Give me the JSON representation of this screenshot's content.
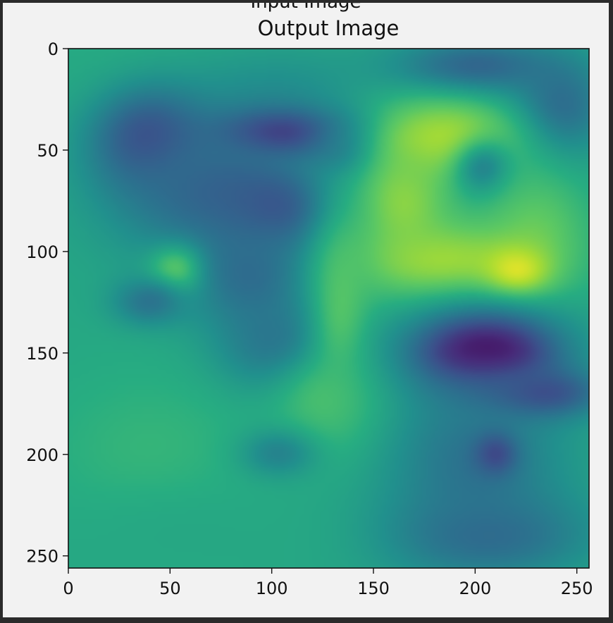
{
  "window": {
    "partial_top_text": "Input Image"
  },
  "chart_data": {
    "type": "heatmap",
    "title": "Output Image",
    "colormap": "viridis",
    "xlim": [
      0,
      256
    ],
    "ylim": [
      256,
      0
    ],
    "x_ticks": [
      0,
      50,
      100,
      150,
      200,
      250
    ],
    "y_ticks": [
      0,
      50,
      100,
      150,
      200,
      250
    ],
    "grid": false,
    "value_range": [
      0,
      1
    ],
    "blobs": [
      {
        "x": 30,
        "y": 10,
        "rx": 40,
        "ry": 30,
        "v": 0.62
      },
      {
        "x": 105,
        "y": 22,
        "rx": 45,
        "ry": 22,
        "v": 0.5
      },
      {
        "x": 200,
        "y": 10,
        "rx": 40,
        "ry": 15,
        "v": 0.3
      },
      {
        "x": 240,
        "y": 30,
        "rx": 25,
        "ry": 25,
        "v": 0.32
      },
      {
        "x": 40,
        "y": 45,
        "rx": 28,
        "ry": 25,
        "v": 0.22
      },
      {
        "x": 105,
        "y": 42,
        "rx": 32,
        "ry": 12,
        "v": 0.12
      },
      {
        "x": 140,
        "y": 48,
        "rx": 20,
        "ry": 15,
        "v": 0.28
      },
      {
        "x": 70,
        "y": 70,
        "rx": 50,
        "ry": 35,
        "v": 0.33
      },
      {
        "x": 100,
        "y": 80,
        "rx": 25,
        "ry": 20,
        "v": 0.24
      },
      {
        "x": 55,
        "y": 110,
        "rx": 14,
        "ry": 12,
        "v": 0.88
      },
      {
        "x": 40,
        "y": 125,
        "rx": 18,
        "ry": 12,
        "v": 0.38
      },
      {
        "x": 90,
        "y": 110,
        "rx": 30,
        "ry": 30,
        "v": 0.35
      },
      {
        "x": 105,
        "y": 150,
        "rx": 30,
        "ry": 25,
        "v": 0.32
      },
      {
        "x": 185,
        "y": 45,
        "rx": 40,
        "ry": 22,
        "v": 0.88
      },
      {
        "x": 165,
        "y": 75,
        "rx": 22,
        "ry": 28,
        "v": 0.82
      },
      {
        "x": 205,
        "y": 60,
        "rx": 14,
        "ry": 14,
        "v": 0.42
      },
      {
        "x": 230,
        "y": 90,
        "rx": 25,
        "ry": 30,
        "v": 0.75
      },
      {
        "x": 185,
        "y": 105,
        "rx": 45,
        "ry": 20,
        "v": 0.86
      },
      {
        "x": 220,
        "y": 110,
        "rx": 16,
        "ry": 12,
        "v": 0.98
      },
      {
        "x": 135,
        "y": 130,
        "rx": 15,
        "ry": 45,
        "v": 0.74
      },
      {
        "x": 130,
        "y": 175,
        "rx": 35,
        "ry": 28,
        "v": 0.72
      },
      {
        "x": 205,
        "y": 150,
        "rx": 38,
        "ry": 22,
        "v": 0.08
      },
      {
        "x": 205,
        "y": 150,
        "rx": 20,
        "ry": 10,
        "v": 0.0
      },
      {
        "x": 230,
        "y": 170,
        "rx": 30,
        "ry": 12,
        "v": 0.18
      },
      {
        "x": 200,
        "y": 205,
        "rx": 45,
        "ry": 45,
        "v": 0.38
      },
      {
        "x": 210,
        "y": 200,
        "rx": 10,
        "ry": 10,
        "v": 0.22
      },
      {
        "x": 205,
        "y": 240,
        "rx": 50,
        "ry": 20,
        "v": 0.35
      },
      {
        "x": 100,
        "y": 200,
        "rx": 20,
        "ry": 12,
        "v": 0.38
      },
      {
        "x": 40,
        "y": 200,
        "rx": 50,
        "ry": 40,
        "v": 0.66
      },
      {
        "x": 60,
        "y": 240,
        "rx": 70,
        "ry": 25,
        "v": 0.6
      }
    ],
    "base_value": 0.6
  }
}
